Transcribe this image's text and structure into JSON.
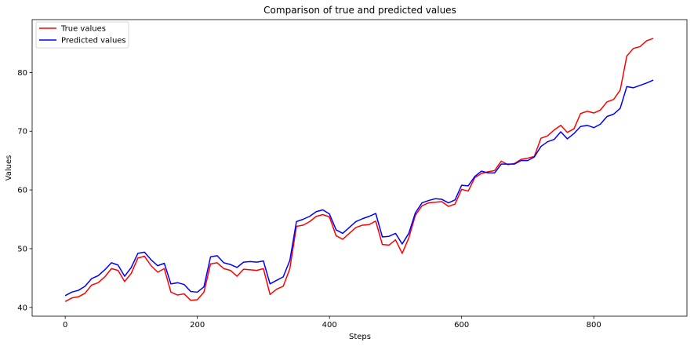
{
  "chart_data": {
    "type": "line",
    "title": "Comparison of true and predicted values",
    "xlabel": "Steps",
    "ylabel": "Values",
    "xlim": [
      -50,
      941
    ],
    "ylim": [
      38.5,
      89
    ],
    "x_ticks": [
      0,
      200,
      400,
      600,
      800
    ],
    "y_ticks": [
      40,
      50,
      60,
      70,
      80
    ],
    "grid": false,
    "legend_position": "top-left",
    "x": [
      0,
      10,
      20,
      30,
      40,
      50,
      60,
      70,
      80,
      90,
      100,
      110,
      120,
      130,
      140,
      150,
      160,
      170,
      180,
      190,
      200,
      210,
      220,
      230,
      240,
      250,
      260,
      270,
      280,
      290,
      300,
      310,
      320,
      330,
      340,
      350,
      360,
      370,
      380,
      390,
      400,
      410,
      420,
      430,
      440,
      450,
      460,
      470,
      480,
      490,
      500,
      510,
      520,
      530,
      540,
      550,
      560,
      570,
      580,
      590,
      600,
      610,
      620,
      630,
      640,
      650,
      660,
      670,
      680,
      690,
      700,
      710,
      720,
      730,
      740,
      750,
      760,
      770,
      780,
      790,
      800,
      810,
      820,
      830,
      840,
      850,
      860,
      870,
      880,
      890
    ],
    "series": [
      {
        "name": "True values",
        "color": "#ff0000",
        "values": [
          41.0,
          41.6,
          41.8,
          42.4,
          43.8,
          44.2,
          45.2,
          46.6,
          46.3,
          44.4,
          45.8,
          48.4,
          48.7,
          47.1,
          46.0,
          46.6,
          42.6,
          42.1,
          42.3,
          41.2,
          41.3,
          42.6,
          47.4,
          47.6,
          46.6,
          46.3,
          45.3,
          46.5,
          46.4,
          46.3,
          46.6,
          42.2,
          43.1,
          43.6,
          46.6,
          53.8,
          54.0,
          54.6,
          55.5,
          55.8,
          55.4,
          52.2,
          51.6,
          52.6,
          53.6,
          54.0,
          54.1,
          54.7,
          50.7,
          50.6,
          51.5,
          49.2,
          51.8,
          55.7,
          57.3,
          57.8,
          57.9,
          58.0,
          57.2,
          57.6,
          60.1,
          59.8,
          62.1,
          62.8,
          63.1,
          63.3,
          64.9,
          64.3,
          64.5,
          65.2,
          65.4,
          65.7,
          68.8,
          69.2,
          70.2,
          71.0,
          69.8,
          70.4,
          73.0,
          73.4,
          73.1,
          73.6,
          75.0,
          75.4,
          77.0,
          82.8,
          84.1,
          84.4,
          85.4,
          85.8
        ]
      },
      {
        "name": "Predicted values",
        "color": "#0000ff",
        "values": [
          42.0,
          42.6,
          42.9,
          43.6,
          44.9,
          45.4,
          46.4,
          47.6,
          47.2,
          45.3,
          46.8,
          49.2,
          49.4,
          48.1,
          47.1,
          47.5,
          44.0,
          44.2,
          43.9,
          42.7,
          42.6,
          43.5,
          48.6,
          48.8,
          47.6,
          47.3,
          46.8,
          47.7,
          47.8,
          47.7,
          47.9,
          44.0,
          44.6,
          45.2,
          48.0,
          54.6,
          55.0,
          55.5,
          56.3,
          56.6,
          55.9,
          53.2,
          52.6,
          53.6,
          54.6,
          55.1,
          55.5,
          56.0,
          52.0,
          52.1,
          52.6,
          50.8,
          52.6,
          56.1,
          57.8,
          58.2,
          58.5,
          58.4,
          57.8,
          58.3,
          60.8,
          60.7,
          62.3,
          63.2,
          62.9,
          62.9,
          64.4,
          64.4,
          64.4,
          65.0,
          65.0,
          65.6,
          67.4,
          68.2,
          68.6,
          69.9,
          68.7,
          69.6,
          70.8,
          71.0,
          70.6,
          71.2,
          72.5,
          72.9,
          73.9,
          77.6,
          77.4,
          77.8,
          78.2,
          78.7
        ]
      }
    ]
  }
}
